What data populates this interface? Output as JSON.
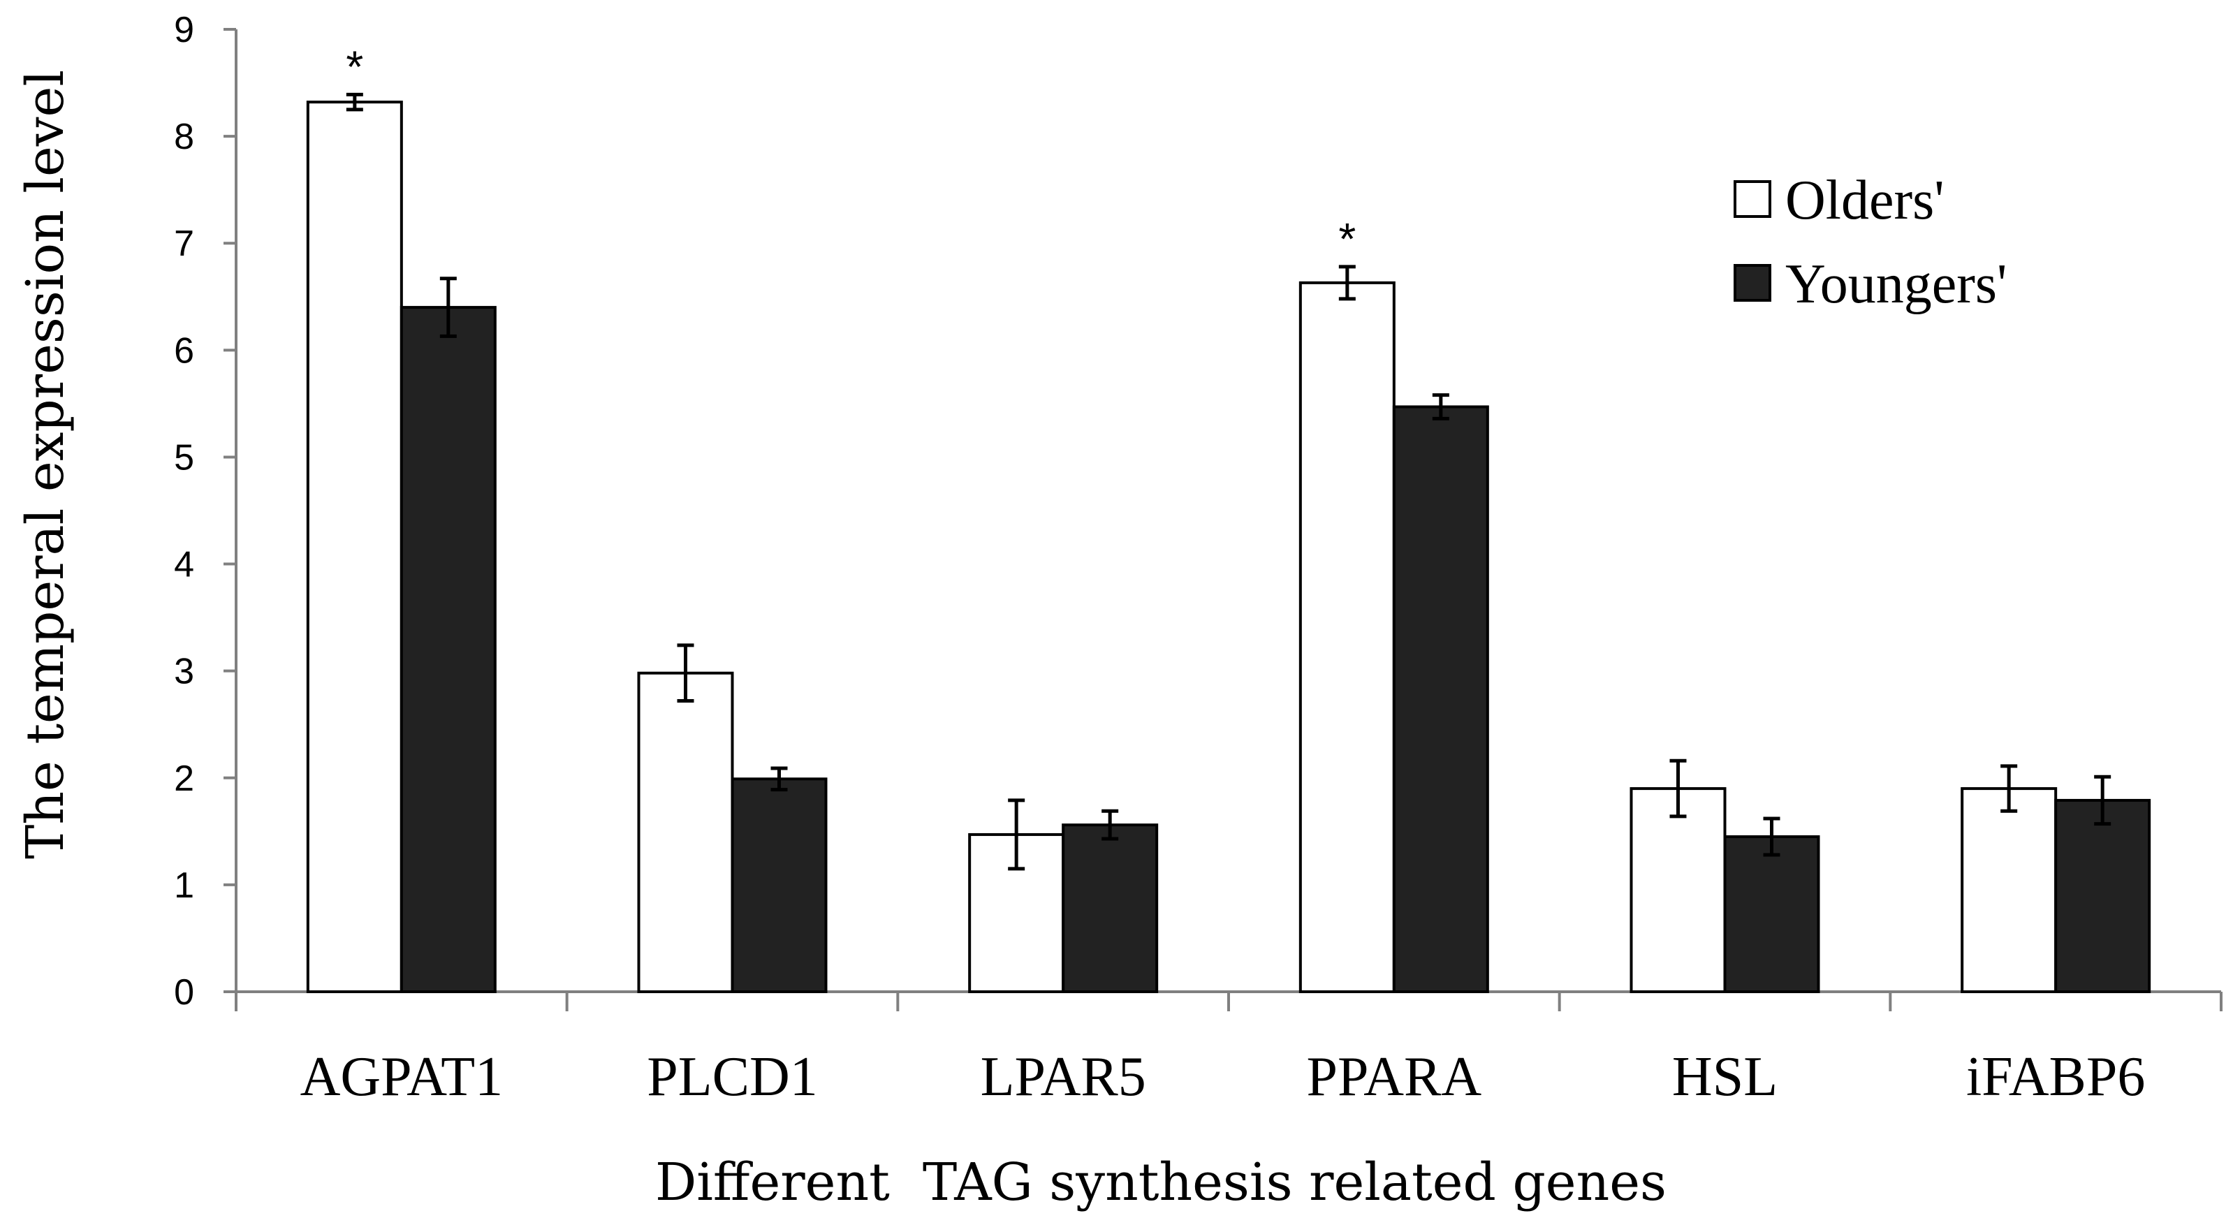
{
  "chart_data": {
    "type": "bar",
    "title": "",
    "xlabel": "Different  TAG synthesis related genes",
    "ylabel": "The temperal expression level",
    "ylim": [
      0,
      9
    ],
    "yticks": [
      0,
      1,
      2,
      3,
      4,
      5,
      6,
      7,
      8,
      9
    ],
    "grid": false,
    "legend_position": "top-right",
    "categories": [
      "AGPAT1",
      "PLCD1",
      "LPAR5",
      "PPARA",
      "HSL",
      "iFABP6"
    ],
    "series": [
      {
        "name": "Olders'",
        "color": "#ffffff",
        "values": [
          8.32,
          2.98,
          1.47,
          6.63,
          1.9,
          1.9
        ],
        "errors": [
          0.07,
          0.26,
          0.32,
          0.15,
          0.26,
          0.21
        ]
      },
      {
        "name": "Youngers'",
        "color": "#222222",
        "values": [
          6.4,
          1.99,
          1.56,
          5.47,
          1.45,
          1.79
        ],
        "errors": [
          0.27,
          0.1,
          0.13,
          0.11,
          0.17,
          0.22
        ]
      }
    ],
    "annotations": [
      {
        "text": "*",
        "category": "AGPAT1",
        "series": "Olders'"
      },
      {
        "text": "*",
        "category": "PPARA",
        "series": "Olders'"
      }
    ]
  }
}
